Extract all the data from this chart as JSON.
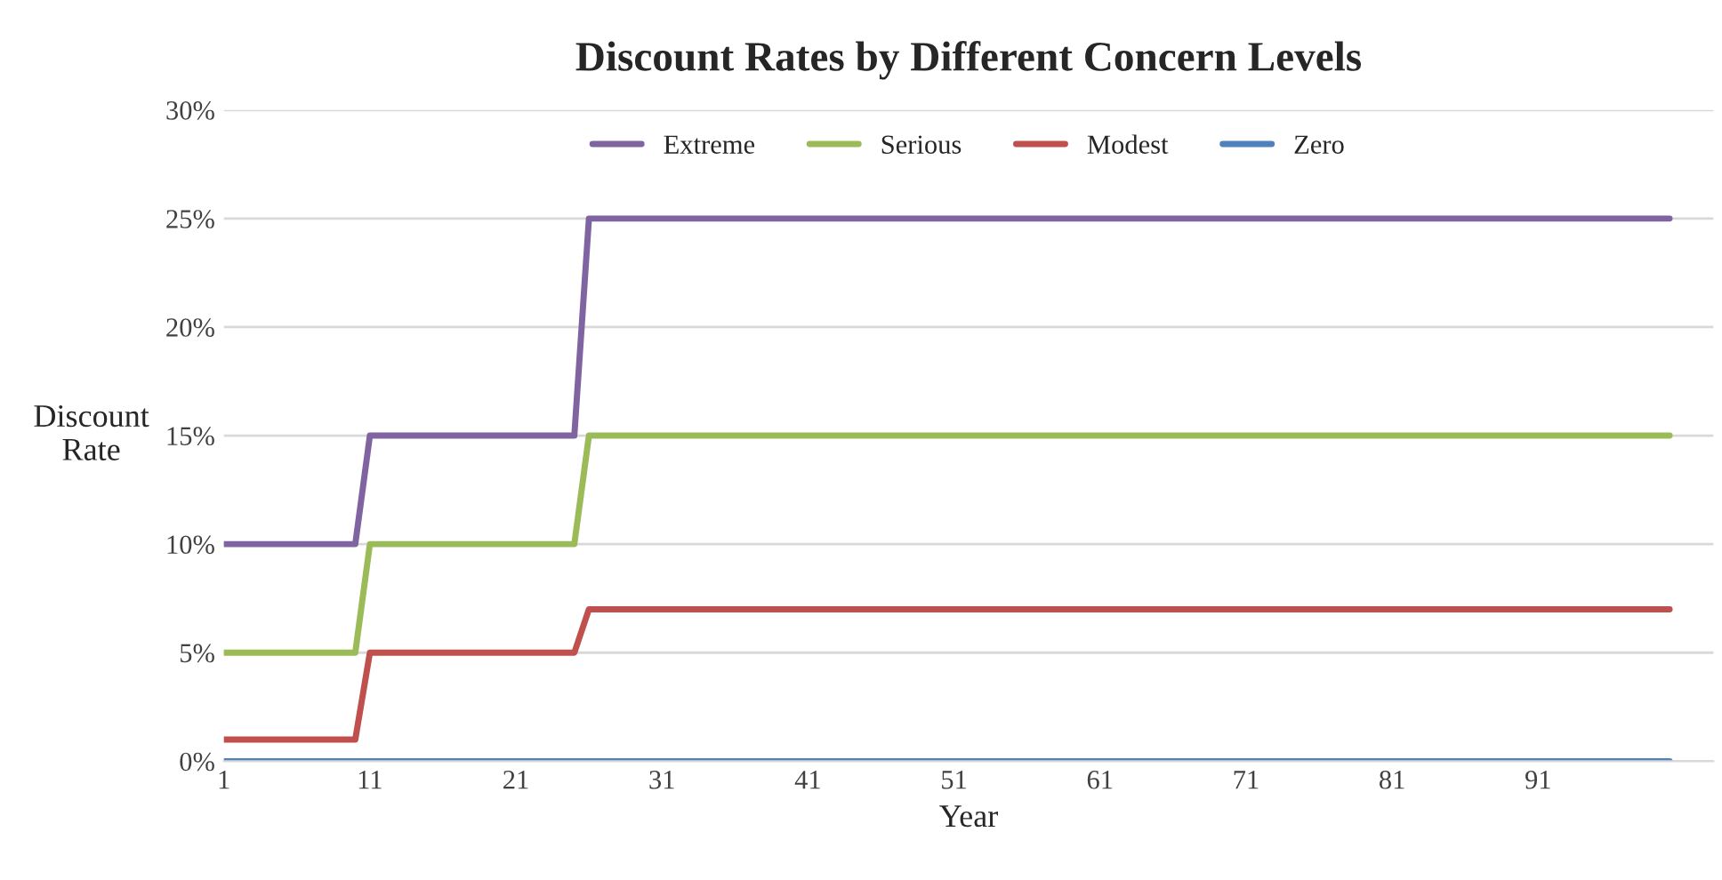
{
  "chart_data": {
    "type": "line",
    "title": "Discount Rates by Different Concern Levels",
    "xlabel": "Year",
    "ylabel": "Discount\nRate",
    "categories": [
      "1",
      null,
      null,
      null,
      null,
      null,
      null,
      null,
      null,
      null,
      "11",
      null,
      null,
      null,
      null,
      null,
      null,
      null,
      null,
      null,
      "21",
      null,
      null,
      null,
      null,
      null,
      null,
      null,
      null,
      null,
      "31",
      null,
      null,
      null,
      null,
      null,
      null,
      null,
      null,
      null,
      "41",
      null,
      null,
      null,
      null,
      null,
      null,
      null,
      null,
      null,
      "51",
      null,
      null,
      null,
      null,
      null,
      null,
      null,
      null,
      null,
      "61",
      null,
      null,
      null,
      null,
      null,
      null,
      null,
      null,
      null,
      "71",
      null,
      null,
      null,
      null,
      null,
      null,
      null,
      null,
      null,
      "81",
      null,
      null,
      null,
      null,
      null,
      null,
      null,
      null,
      null,
      "91",
      null,
      null,
      null,
      null,
      null,
      null,
      null,
      null,
      null
    ],
    "series": [
      {
        "name": "Extreme",
        "color": "#8064a2",
        "values": [
          10,
          10,
          10,
          10,
          10,
          10,
          10,
          10,
          10,
          10,
          15,
          15,
          15,
          15,
          15,
          15,
          15,
          15,
          15,
          15,
          15,
          15,
          15,
          15,
          15,
          25,
          25,
          25,
          25,
          25,
          25,
          25,
          25,
          25,
          25,
          25,
          25,
          25,
          25,
          25,
          25,
          25,
          25,
          25,
          25,
          25,
          25,
          25,
          25,
          25,
          25,
          25,
          25,
          25,
          25,
          25,
          25,
          25,
          25,
          25,
          25,
          25,
          25,
          25,
          25,
          25,
          25,
          25,
          25,
          25,
          25,
          25,
          25,
          25,
          25,
          25,
          25,
          25,
          25,
          25,
          25,
          25,
          25,
          25,
          25,
          25,
          25,
          25,
          25,
          25,
          25,
          25,
          25,
          25,
          25,
          25,
          25,
          25,
          25,
          25
        ]
      },
      {
        "name": "Serious",
        "color": "#9bbb59",
        "values": [
          5,
          5,
          5,
          5,
          5,
          5,
          5,
          5,
          5,
          5,
          10,
          10,
          10,
          10,
          10,
          10,
          10,
          10,
          10,
          10,
          10,
          10,
          10,
          10,
          10,
          15,
          15,
          15,
          15,
          15,
          15,
          15,
          15,
          15,
          15,
          15,
          15,
          15,
          15,
          15,
          15,
          15,
          15,
          15,
          15,
          15,
          15,
          15,
          15,
          15,
          15,
          15,
          15,
          15,
          15,
          15,
          15,
          15,
          15,
          15,
          15,
          15,
          15,
          15,
          15,
          15,
          15,
          15,
          15,
          15,
          15,
          15,
          15,
          15,
          15,
          15,
          15,
          15,
          15,
          15,
          15,
          15,
          15,
          15,
          15,
          15,
          15,
          15,
          15,
          15,
          15,
          15,
          15,
          15,
          15,
          15,
          15,
          15,
          15,
          15
        ]
      },
      {
        "name": "Modest",
        "color": "#c0504d",
        "values": [
          1,
          1,
          1,
          1,
          1,
          1,
          1,
          1,
          1,
          1,
          5,
          5,
          5,
          5,
          5,
          5,
          5,
          5,
          5,
          5,
          5,
          5,
          5,
          5,
          5,
          7,
          7,
          7,
          7,
          7,
          7,
          7,
          7,
          7,
          7,
          7,
          7,
          7,
          7,
          7,
          7,
          7,
          7,
          7,
          7,
          7,
          7,
          7,
          7,
          7,
          7,
          7,
          7,
          7,
          7,
          7,
          7,
          7,
          7,
          7,
          7,
          7,
          7,
          7,
          7,
          7,
          7,
          7,
          7,
          7,
          7,
          7,
          7,
          7,
          7,
          7,
          7,
          7,
          7,
          7,
          7,
          7,
          7,
          7,
          7,
          7,
          7,
          7,
          7,
          7,
          7,
          7,
          7,
          7,
          7,
          7,
          7,
          7,
          7,
          7
        ]
      },
      {
        "name": "Zero",
        "color": "#4f81bd",
        "values": [
          0,
          0,
          0,
          0,
          0,
          0,
          0,
          0,
          0,
          0,
          0,
          0,
          0,
          0,
          0,
          0,
          0,
          0,
          0,
          0,
          0,
          0,
          0,
          0,
          0,
          0,
          0,
          0,
          0,
          0,
          0,
          0,
          0,
          0,
          0,
          0,
          0,
          0,
          0,
          0,
          0,
          0,
          0,
          0,
          0,
          0,
          0,
          0,
          0,
          0,
          0,
          0,
          0,
          0,
          0,
          0,
          0,
          0,
          0,
          0,
          0,
          0,
          0,
          0,
          0,
          0,
          0,
          0,
          0,
          0,
          0,
          0,
          0,
          0,
          0,
          0,
          0,
          0,
          0,
          0,
          0,
          0,
          0,
          0,
          0,
          0,
          0,
          0,
          0,
          0,
          0,
          0,
          0,
          0,
          0,
          0,
          0,
          0,
          0,
          0
        ]
      }
    ],
    "ylim": [
      0,
      30
    ],
    "yticks": [
      {
        "value": 0,
        "label": "0%"
      },
      {
        "value": 5,
        "label": "5%"
      },
      {
        "value": 10,
        "label": "10%"
      },
      {
        "value": 15,
        "label": "15%"
      },
      {
        "value": 20,
        "label": "20%"
      },
      {
        "value": 25,
        "label": "25%"
      },
      {
        "value": 30,
        "label": "30%"
      }
    ],
    "grid": "y",
    "legend": "top",
    "marker": "none",
    "line_style": "solid"
  }
}
